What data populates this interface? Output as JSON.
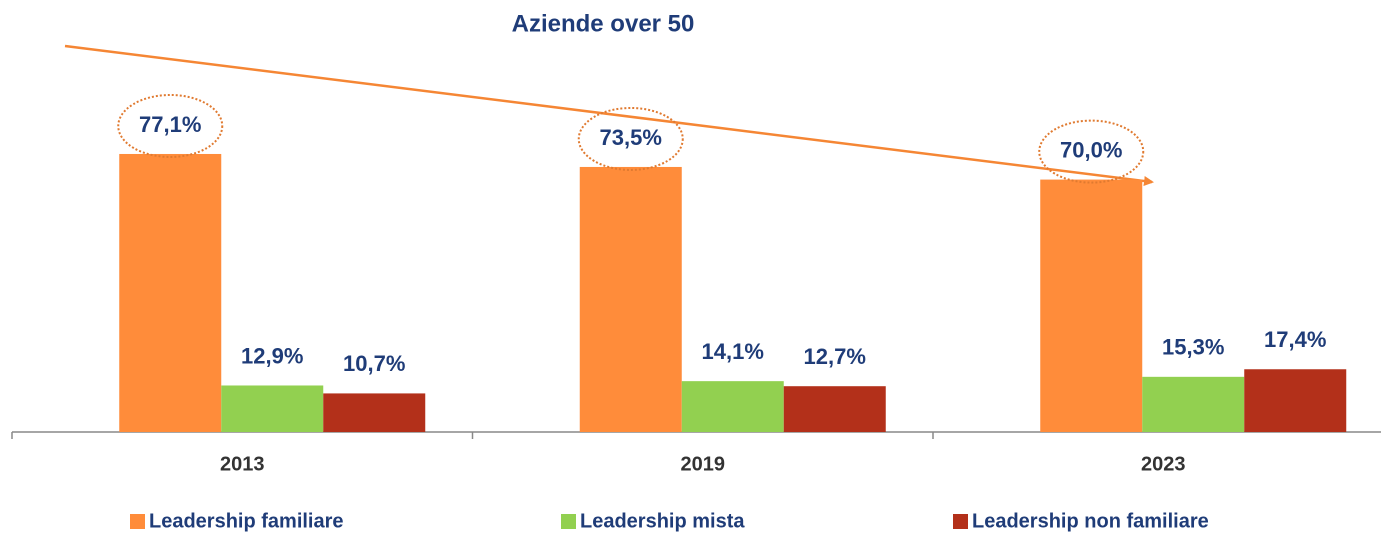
{
  "chart_data": {
    "type": "bar",
    "title": "Aziende over 50",
    "categories": [
      "2013",
      "2019",
      "2023"
    ],
    "series": [
      {
        "name": "Leadership familiare",
        "color": "#ff8c3a",
        "values": [
          77.1,
          73.5,
          70.0
        ],
        "value_labels": [
          "77,1%",
          "73,5%",
          "70,0%"
        ]
      },
      {
        "name": "Leadership mista",
        "color": "#92d050",
        "values": [
          12.9,
          14.1,
          15.3
        ],
        "value_labels": [
          "12,9%",
          "14,1%",
          "15,3%"
        ]
      },
      {
        "name": "Leadership non familiare",
        "color": "#b3301a",
        "values": [
          10.7,
          12.7,
          17.4
        ],
        "value_labels": [
          "10,7%",
          "12,7%",
          "17,4%"
        ]
      }
    ],
    "ylim": [
      0,
      100
    ],
    "legend": "bottom"
  }
}
